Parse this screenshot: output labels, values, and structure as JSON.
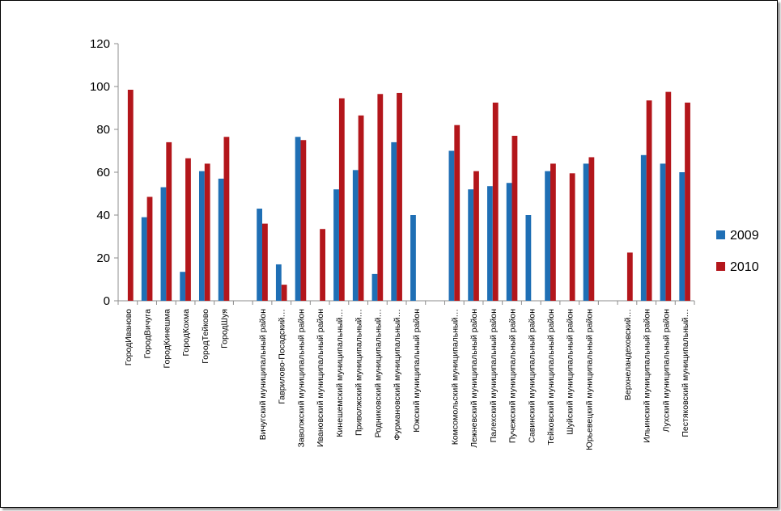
{
  "chart_data": {
    "type": "bar",
    "ylim": [
      0,
      120
    ],
    "yticks": [
      "0",
      "20",
      "40",
      "60",
      "80",
      "100",
      "120"
    ],
    "grid": false,
    "legend_position": "right",
    "categories": [
      "ГородИваново",
      "ГородВичуга",
      "ГородКинешма",
      "ГородКохма",
      "ГородТейково",
      "ГородШуя",
      "",
      "Вичугский муниципальный район",
      "Гаврилово-Посадский…",
      "Заволжский муниципальный район",
      "Ивановский муниципальный район",
      "Кинешемский муниципальный…",
      "Приволжский муниципальный…",
      "Родниковский муниципальный…",
      "Фурмановский муниципальный…",
      "Южский муниципальный район",
      "",
      "Комсомольский муниципальный…",
      "Лежневский муниципальный район",
      "Палехский муниципальный район",
      "Пучежский муниципальный район",
      "Савинский муниципальный район",
      "Тейковский муниципальный район",
      "Шуйский муниципальный район",
      "Юрьевецкий муниципальный район",
      "",
      "Верхнеландеховский…",
      "Ильинский муниципальный район",
      "Лухский муниципальный район",
      "Пестяковский муниципальный…"
    ],
    "series": [
      {
        "name": "2009",
        "color": "#1f6fb5",
        "values": [
          0,
          39,
          53,
          13.5,
          60.5,
          57,
          null,
          43,
          17,
          76.5,
          0,
          52,
          61,
          12.5,
          74,
          40,
          null,
          70,
          52,
          53.5,
          55,
          40,
          60.5,
          0,
          64,
          null,
          0,
          68,
          64,
          60
        ]
      },
      {
        "name": "2010",
        "color": "#b3161b",
        "values": [
          98.5,
          48.5,
          74,
          66.5,
          64,
          76.5,
          null,
          36,
          7.5,
          75,
          33.5,
          94.5,
          86.5,
          96.5,
          97,
          0,
          null,
          82,
          60.5,
          92.5,
          77,
          0,
          64,
          59.5,
          67,
          null,
          22.5,
          93.5,
          97.5,
          92.5
        ]
      }
    ]
  }
}
